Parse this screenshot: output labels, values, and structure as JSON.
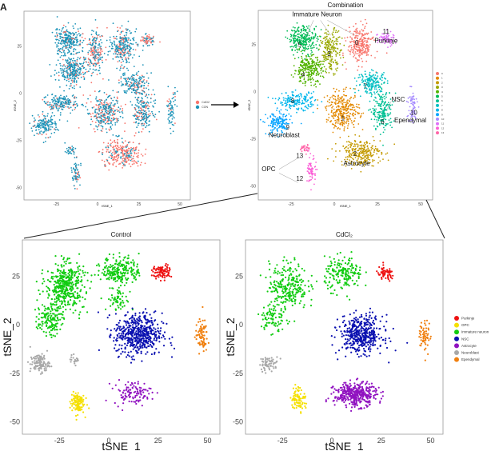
{
  "figure_label": "A",
  "chart_data": [
    {
      "id": "condition",
      "type": "scatter",
      "title": "",
      "xlabel": "tSNE_1",
      "ylabel": "tSNE_2",
      "xticks": [
        -25,
        0,
        25,
        50
      ],
      "yticks": [
        25,
        0,
        -25,
        -50
      ],
      "legend": [
        {
          "name": "CdCl2",
          "color": "#F8766D"
        },
        {
          "name": "CON",
          "color": "#1C93B8"
        }
      ],
      "legend_position": "right",
      "clusters": [
        {
          "x": 15,
          "y": 25,
          "sx": 6,
          "sy": 8,
          "n": 260,
          "frac_cd": 0.25
        },
        {
          "x": 30,
          "y": 28,
          "sx": 4,
          "sy": 3,
          "n": 70,
          "frac_cd": 0.5
        },
        {
          "x": -2,
          "y": 22,
          "sx": 5,
          "sy": 9,
          "n": 200,
          "frac_cd": 0.45
        },
        {
          "x": -18,
          "y": 28,
          "sx": 7,
          "sy": 6,
          "n": 260,
          "frac_cd": 0.1
        },
        {
          "x": -15,
          "y": 12,
          "sx": 7,
          "sy": 6,
          "n": 260,
          "frac_cd": 0.15
        },
        {
          "x": 22,
          "y": 5,
          "sx": 7,
          "sy": 5,
          "n": 180,
          "frac_cd": 0.2
        },
        {
          "x": 28,
          "y": -10,
          "sx": 5,
          "sy": 9,
          "n": 200,
          "frac_cd": 0.25
        },
        {
          "x": -22,
          "y": -5,
          "sx": 9,
          "sy": 4,
          "n": 180,
          "frac_cd": 0.2
        },
        {
          "x": -32,
          "y": -17,
          "sx": 6,
          "sy": 5,
          "n": 160,
          "frac_cd": 0.1
        },
        {
          "x": 5,
          "y": -10,
          "sx": 8,
          "sy": 8,
          "n": 300,
          "frac_cd": 0.35
        },
        {
          "x": 15,
          "y": -32,
          "sx": 10,
          "sy": 6,
          "n": 280,
          "frac_cd": 0.75
        },
        {
          "x": 45,
          "y": -8,
          "sx": 2.5,
          "sy": 8,
          "n": 70,
          "frac_cd": 0.25
        },
        {
          "x": -17,
          "y": -30,
          "sx": 2,
          "sy": 2,
          "n": 30,
          "frac_cd": 0.1
        },
        {
          "x": -13,
          "y": -42,
          "sx": 2,
          "sy": 6,
          "n": 70,
          "frac_cd": 0.25
        }
      ]
    },
    {
      "id": "combination",
      "type": "scatter",
      "title": "Combination",
      "xticks": [
        -25,
        0,
        25,
        50
      ],
      "yticks": [
        25,
        0,
        -25,
        -50
      ],
      "legend": [
        {
          "name": "0",
          "color": "#F8766D"
        },
        {
          "name": "1",
          "color": "#E38900"
        },
        {
          "name": "2",
          "color": "#C49A00"
        },
        {
          "name": "3",
          "color": "#99A800"
        },
        {
          "name": "4",
          "color": "#53B400"
        },
        {
          "name": "5",
          "color": "#00BC56"
        },
        {
          "name": "6",
          "color": "#00C094"
        },
        {
          "name": "7",
          "color": "#00BFC4"
        },
        {
          "name": "8",
          "color": "#00B6EB"
        },
        {
          "name": "9",
          "color": "#06A4FF"
        },
        {
          "name": "10",
          "color": "#A58AFF"
        },
        {
          "name": "11",
          "color": "#DF70F8"
        },
        {
          "name": "12",
          "color": "#FB61D7"
        },
        {
          "name": "13",
          "color": "#FF66A8"
        }
      ],
      "legend_position": "right",
      "cluster_labels": [
        {
          "text": "0",
          "x": 13,
          "y": 25
        },
        {
          "text": "11",
          "x": 30,
          "y": 31
        },
        {
          "text": "3",
          "x": -3,
          "y": 19
        },
        {
          "text": "5",
          "x": -20,
          "y": 24
        },
        {
          "text": "4",
          "x": -18,
          "y": 8
        },
        {
          "text": "7",
          "x": 18,
          "y": 2
        },
        {
          "text": "6",
          "x": 28,
          "y": -17
        },
        {
          "text": "8",
          "x": -24,
          "y": -6
        },
        {
          "text": "9",
          "x": -27,
          "y": -20
        },
        {
          "text": "1",
          "x": 5,
          "y": -15
        },
        {
          "text": "2",
          "x": 12,
          "y": -34
        },
        {
          "text": "10",
          "x": 46,
          "y": -12
        },
        {
          "text": "13",
          "x": -20,
          "y": -35
        },
        {
          "text": "12",
          "x": -20,
          "y": -47
        }
      ],
      "annotations": [
        {
          "text": "Immature Neuron",
          "x": -10,
          "y": 40
        },
        {
          "text": "Purkinje",
          "x": 30,
          "y": 26
        },
        {
          "text": "NSC",
          "x": 37,
          "y": -5
        },
        {
          "text": "Ependymal",
          "x": 44,
          "y": -16
        },
        {
          "text": "Neuroblast",
          "x": -29,
          "y": -24
        },
        {
          "text": "Astrocyte",
          "x": 13,
          "y": -39
        },
        {
          "text": "OPC",
          "x": -38,
          "y": -42
        }
      ],
      "clusters": [
        {
          "c": 0,
          "x": 15,
          "y": 25,
          "sx": 6,
          "sy": 8,
          "n": 260
        },
        {
          "c": 11,
          "x": 30,
          "y": 28,
          "sx": 4,
          "sy": 3,
          "n": 70
        },
        {
          "c": 3,
          "x": -2,
          "y": 22,
          "sx": 5,
          "sy": 9,
          "n": 200
        },
        {
          "c": 5,
          "x": -18,
          "y": 28,
          "sx": 7,
          "sy": 6,
          "n": 260
        },
        {
          "c": 4,
          "x": -15,
          "y": 12,
          "sx": 7,
          "sy": 6,
          "n": 260
        },
        {
          "c": 7,
          "x": 22,
          "y": 5,
          "sx": 7,
          "sy": 5,
          "n": 180
        },
        {
          "c": 6,
          "x": 28,
          "y": -10,
          "sx": 5,
          "sy": 9,
          "n": 200
        },
        {
          "c": 8,
          "x": -22,
          "y": -5,
          "sx": 9,
          "sy": 4,
          "n": 180
        },
        {
          "c": 9,
          "x": -32,
          "y": -17,
          "sx": 6,
          "sy": 5,
          "n": 160
        },
        {
          "c": 1,
          "x": 5,
          "y": -10,
          "sx": 8,
          "sy": 8,
          "n": 300
        },
        {
          "c": 2,
          "x": 15,
          "y": -32,
          "sx": 10,
          "sy": 6,
          "n": 280
        },
        {
          "c": 10,
          "x": 45,
          "y": -8,
          "sx": 2.5,
          "sy": 8,
          "n": 70
        },
        {
          "c": 13,
          "x": -17,
          "y": -30,
          "sx": 2,
          "sy": 2,
          "n": 30
        },
        {
          "c": 12,
          "x": -13,
          "y": -42,
          "sx": 2,
          "sy": 6,
          "n": 70
        }
      ]
    },
    {
      "id": "control",
      "type": "scatter",
      "title": "Control",
      "xlabel": "tSNE_1",
      "ylabel": "tSNE_2",
      "xticks": [
        -25,
        0,
        25,
        50
      ],
      "yticks": [
        25,
        0,
        -25,
        -50
      ],
      "clusters": [
        {
          "t": 2,
          "x": -22,
          "y": 20,
          "sx": 8,
          "sy": 10,
          "n": 420
        },
        {
          "t": 2,
          "x": -30,
          "y": 3,
          "sx": 5,
          "sy": 7,
          "n": 150
        },
        {
          "t": 2,
          "x": 6,
          "y": 28,
          "sx": 8,
          "sy": 6,
          "n": 220
        },
        {
          "t": 2,
          "x": 5,
          "y": 13,
          "sx": 5,
          "sy": 5,
          "n": 60
        },
        {
          "t": 0,
          "x": 27,
          "y": 27,
          "sx": 4,
          "sy": 3,
          "n": 90
        },
        {
          "t": 3,
          "x": 15,
          "y": -5,
          "sx": 10,
          "sy": 9,
          "n": 520
        },
        {
          "t": 4,
          "x": 12,
          "y": -35,
          "sx": 8,
          "sy": 5,
          "n": 110
        },
        {
          "t": 5,
          "x": -35,
          "y": -20,
          "sx": 4,
          "sy": 4,
          "n": 110
        },
        {
          "t": 5,
          "x": -17,
          "y": -18,
          "sx": 2,
          "sy": 2,
          "n": 20
        },
        {
          "t": 1,
          "x": -16,
          "y": -40,
          "sx": 3,
          "sy": 5,
          "n": 110
        },
        {
          "t": 6,
          "x": 47,
          "y": -6,
          "sx": 2.5,
          "sy": 7,
          "n": 80
        }
      ]
    },
    {
      "id": "cdcl2",
      "type": "scatter",
      "title": "CdCl₂",
      "xlabel": "tSNE_1",
      "ylabel": "tSNE_2",
      "xticks": [
        -25,
        0,
        25,
        50
      ],
      "yticks": [
        25,
        0,
        -25,
        -50
      ],
      "legend": [
        {
          "name": "Purkinje",
          "color": "#EE1111"
        },
        {
          "name": "OPC",
          "color": "#F5E000"
        },
        {
          "name": "Immature neuron",
          "color": "#11CC11"
        },
        {
          "name": "NSC",
          "color": "#0A10B0"
        },
        {
          "name": "Astrocyte",
          "color": "#9012C0"
        },
        {
          "name": "Neuroblast",
          "color": "#A8A8A8"
        },
        {
          "name": "Ependymal",
          "color": "#F08010"
        }
      ],
      "legend_position": "right",
      "clusters": [
        {
          "t": 2,
          "x": -22,
          "y": 20,
          "sx": 8,
          "sy": 10,
          "n": 260
        },
        {
          "t": 2,
          "x": -30,
          "y": 3,
          "sx": 5,
          "sy": 7,
          "n": 80
        },
        {
          "t": 2,
          "x": 6,
          "y": 26,
          "sx": 8,
          "sy": 7,
          "n": 180
        },
        {
          "t": 0,
          "x": 27,
          "y": 26,
          "sx": 4,
          "sy": 3,
          "n": 60
        },
        {
          "t": 3,
          "x": 15,
          "y": -5,
          "sx": 9,
          "sy": 8,
          "n": 430
        },
        {
          "t": 4,
          "x": 12,
          "y": -36,
          "sx": 9,
          "sy": 5,
          "n": 380
        },
        {
          "t": 5,
          "x": -32,
          "y": -20,
          "sx": 4,
          "sy": 3,
          "n": 60
        },
        {
          "t": 1,
          "x": -17,
          "y": -38,
          "sx": 3,
          "sy": 5,
          "n": 90
        },
        {
          "t": 6,
          "x": 47,
          "y": -6,
          "sx": 2.5,
          "sy": 7,
          "n": 60
        }
      ]
    }
  ]
}
